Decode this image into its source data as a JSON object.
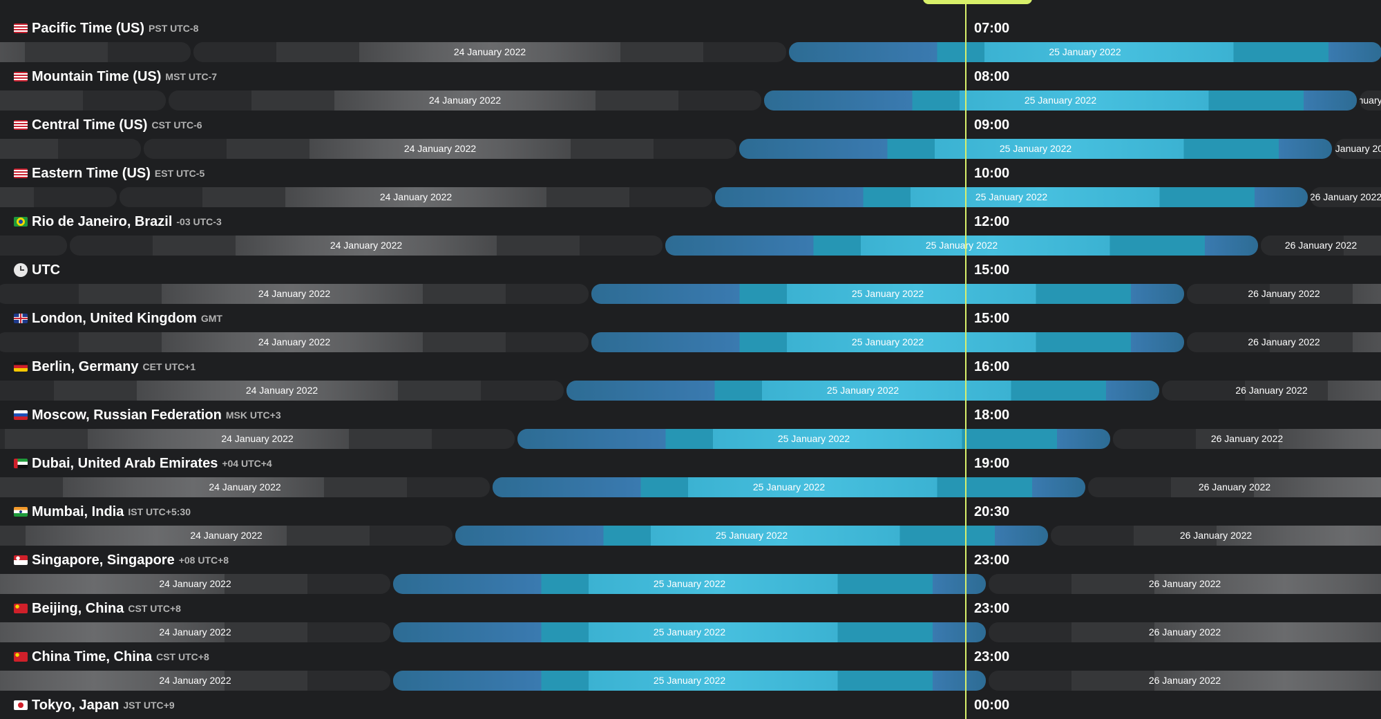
{
  "accent_color": "#d8f06a",
  "colors": {
    "today_day": "#3bb2d2",
    "other_day": "#5e5f61",
    "background": "#1e1f21"
  },
  "rows": [
    {
      "flag": "us",
      "name": "Pacific Time (US)",
      "abbr": "PST UTC-8",
      "time": "07:00"
    },
    {
      "flag": "us",
      "name": "Mountain Time (US)",
      "abbr": "MST UTC-7",
      "time": "08:00"
    },
    {
      "flag": "us",
      "name": "Central Time (US)",
      "abbr": "CST UTC-6",
      "time": "09:00"
    },
    {
      "flag": "us",
      "name": "Eastern Time (US)",
      "abbr": "EST UTC-5",
      "time": "10:00"
    },
    {
      "flag": "br",
      "name": "Rio de Janeiro, Brazil",
      "abbr": "-03 UTC-3",
      "time": "12:00"
    },
    {
      "flag": "utc",
      "name": "UTC",
      "abbr": "",
      "time": "15:00"
    },
    {
      "flag": "gb",
      "name": "London, United Kingdom",
      "abbr": "GMT",
      "time": "15:00"
    },
    {
      "flag": "de",
      "name": "Berlin, Germany",
      "abbr": "CET UTC+1",
      "time": "16:00"
    },
    {
      "flag": "ru",
      "name": "Moscow, Russian Federation",
      "abbr": "MSK UTC+3",
      "time": "18:00"
    },
    {
      "flag": "ae",
      "name": "Dubai, United Arab Emirates",
      "abbr": "+04 UTC+4",
      "time": "19:00"
    },
    {
      "flag": "in",
      "name": "Mumbai, India",
      "abbr": "IST UTC+5:30",
      "time": "20:30"
    },
    {
      "flag": "sg",
      "name": "Singapore, Singapore",
      "abbr": "+08 UTC+8",
      "time": "23:00"
    },
    {
      "flag": "cn",
      "name": "Beijing, China",
      "abbr": "CST UTC+8",
      "time": "23:00"
    },
    {
      "flag": "cn",
      "name": "China Time, China",
      "abbr": "CST UTC+8",
      "time": "23:00"
    },
    {
      "flag": "jp",
      "name": "Tokyo, Japan",
      "abbr": "JST UTC+9",
      "time": "00:00"
    }
  ],
  "day_labels": [
    "24 January 2022",
    "25 January 2022",
    "26 January 2022"
  ]
}
